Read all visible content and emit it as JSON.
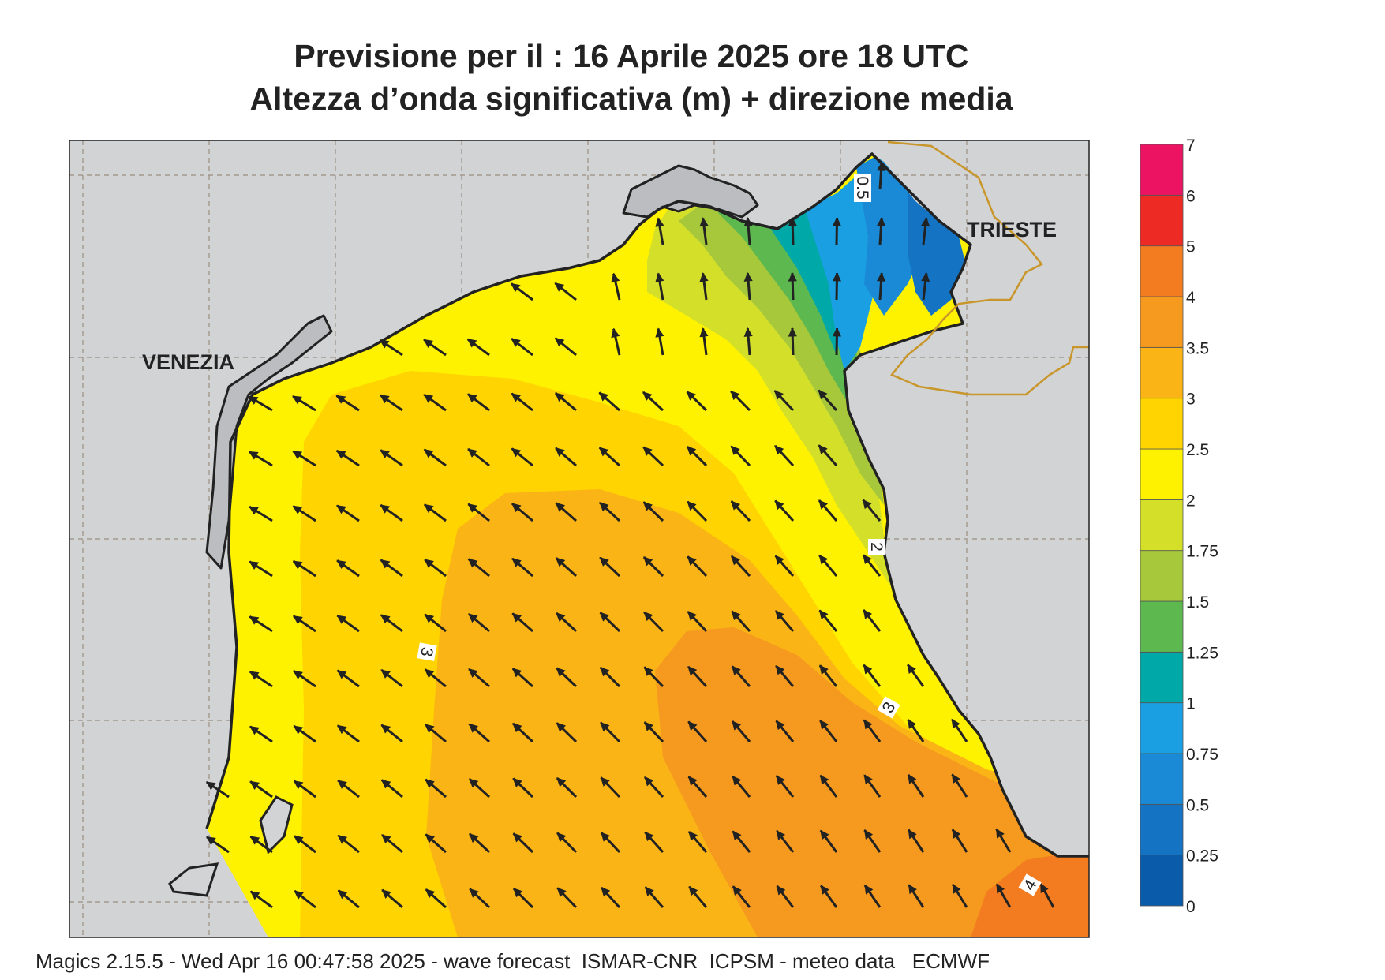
{
  "title": {
    "line1": "Previsione per il  :  16   Aprile  2025   ore 18 UTC",
    "line2": "Altezza d’onda significativa (m) + direzione media"
  },
  "places": {
    "venezia": "VENEZIA",
    "trieste": "TRIESTE"
  },
  "contour_labels": {
    "c05": "0.5",
    "c2": "2",
    "c3a": "3",
    "c3b": "3",
    "c4": "4"
  },
  "legend": {
    "labels": [
      "0",
      "0.25",
      "0.5",
      "0.75",
      "1",
      "1.25",
      "1.5",
      "1.75",
      "2",
      "2.5",
      "3",
      "3.5",
      "4",
      "5",
      "6",
      "7"
    ],
    "colors": [
      "#0a5cab",
      "#1473c3",
      "#1b8ad6",
      "#1aa0e2",
      "#00a8a8",
      "#5cb84f",
      "#a6c83a",
      "#d4df2a",
      "#fff200",
      "#ffd400",
      "#fbb415",
      "#f59a1f",
      "#f47c20",
      "#ee2a24",
      "#ec1462"
    ]
  },
  "colors": {
    "land": "#d2d3d5",
    "lagoon": "#bcbdc0",
    "coast": "#222222",
    "border": "#c8962a",
    "grid": "#9a8f80"
  },
  "footer": "Magics 2.15.5 - Wed Apr 16 00:47:58 2025 - wave forecast  ISMAR-CNR  ICPSM - meteo data   ECMWF"
}
